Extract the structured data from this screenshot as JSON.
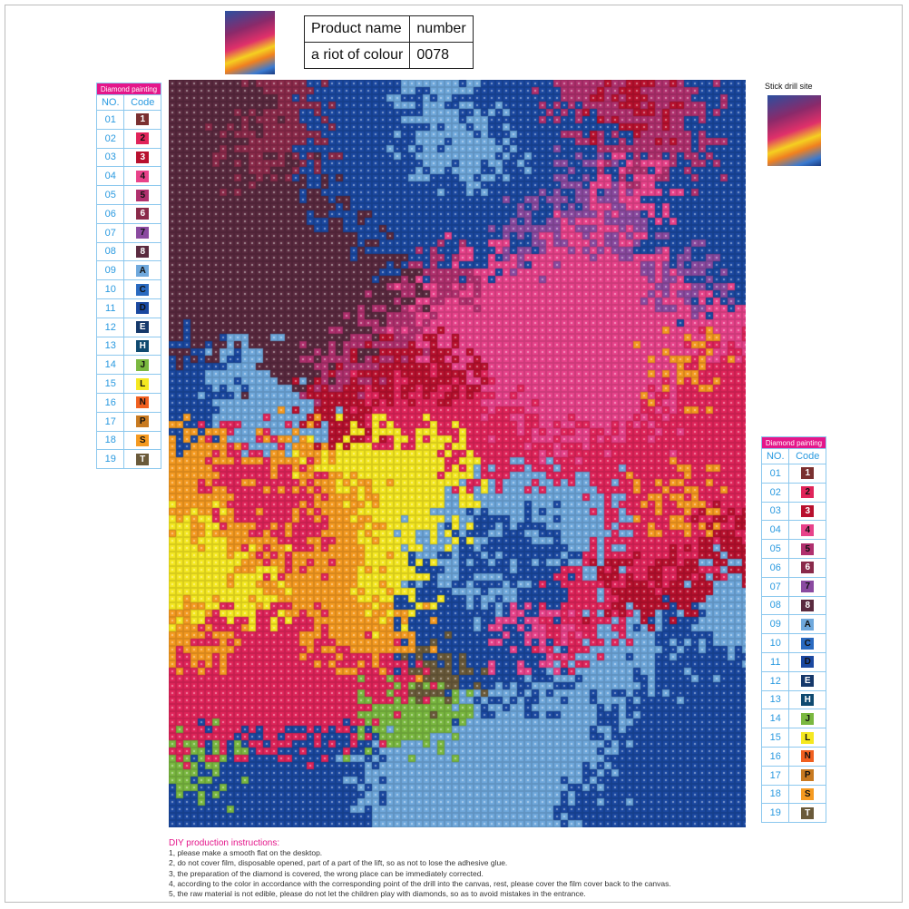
{
  "product_table": {
    "header": [
      "Product name",
      "number"
    ],
    "values": [
      "a riot of colour",
      "0078"
    ]
  },
  "legend": {
    "title": "Diamond painting",
    "col_no": "NO.",
    "col_code": "Code",
    "items": [
      {
        "no": "01",
        "code": "1",
        "color": "#7a3030"
      },
      {
        "no": "02",
        "code": "2",
        "color": "#e0245a"
      },
      {
        "no": "03",
        "code": "3",
        "color": "#b8102e"
      },
      {
        "no": "04",
        "code": "4",
        "color": "#e8428a"
      },
      {
        "no": "05",
        "code": "5",
        "color": "#b0306e"
      },
      {
        "no": "06",
        "code": "6",
        "color": "#8a2a4a"
      },
      {
        "no": "07",
        "code": "7",
        "color": "#8a4aa0"
      },
      {
        "no": "08",
        "code": "8",
        "color": "#5a2a3f"
      },
      {
        "no": "09",
        "code": "A",
        "color": "#6fa8dc"
      },
      {
        "no": "10",
        "code": "C",
        "color": "#2a6ac0"
      },
      {
        "no": "11",
        "code": "D",
        "color": "#1a48a0"
      },
      {
        "no": "12",
        "code": "E",
        "color": "#15386a"
      },
      {
        "no": "13",
        "code": "H",
        "color": "#0f4a70"
      },
      {
        "no": "14",
        "code": "J",
        "color": "#7ab840"
      },
      {
        "no": "15",
        "code": "L",
        "color": "#f5e820"
      },
      {
        "no": "16",
        "code": "N",
        "color": "#f06020"
      },
      {
        "no": "17",
        "code": "P",
        "color": "#c87a20"
      },
      {
        "no": "18",
        "code": "S",
        "color": "#f59a20"
      },
      {
        "no": "19",
        "code": "T",
        "color": "#6a5a3a"
      }
    ]
  },
  "stick_label": "Stick drill site",
  "instructions": {
    "title": "DIY production instructions:",
    "lines": [
      "1, please make a smooth flat on the desktop.",
      "2, do not cover film, disposable opened, part of a part of the lift, so as not to lose the adhesive glue.",
      "3, the preparation of the diamond is covered, the wrong place can be immediately corrected.",
      "4, according to the color in accordance with the corresponding point of the drill into the canvas, rest, please cover the film cover back to the canvas.",
      "5, the raw material is not edible, please do not let the children play with diamonds, so as to avoid mistakes in the entrance."
    ]
  }
}
